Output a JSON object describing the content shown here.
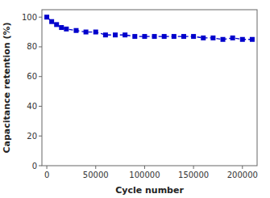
{
  "chart_data": {
    "type": "line",
    "x": [
      0,
      5000,
      10000,
      15000,
      20000,
      30000,
      40000,
      50000,
      60000,
      70000,
      80000,
      90000,
      100000,
      110000,
      120000,
      130000,
      140000,
      150000,
      160000,
      170000,
      180000,
      190000,
      200000,
      210000
    ],
    "values": [
      100,
      97,
      95,
      93,
      92,
      91,
      90,
      90,
      88,
      88,
      88,
      87,
      87,
      87,
      87,
      87,
      87,
      87,
      86,
      86,
      85,
      86,
      85,
      85
    ],
    "xlabel": "Cycle number",
    "ylabel": "Capacitance retention (%)",
    "xlim": [
      -5000,
      215000
    ],
    "ylim": [
      0,
      105
    ],
    "xticks": [
      0,
      50000,
      100000,
      150000,
      200000
    ],
    "yticks": [
      0,
      20,
      40,
      60,
      80,
      100
    ],
    "color": "#0000CC",
    "marker": "square",
    "line_style": "dashed",
    "grid": false
  }
}
